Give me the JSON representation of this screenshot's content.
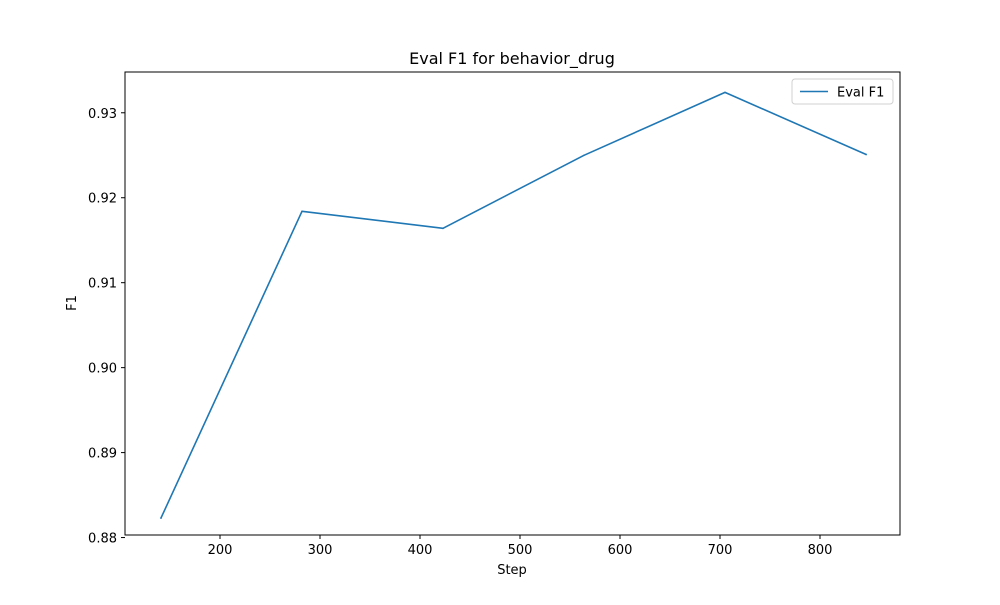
{
  "chart_data": {
    "type": "line",
    "title": "Eval F1 for behavior_drug",
    "xlabel": "Step",
    "ylabel": "F1",
    "xlim": [
      105,
      880
    ],
    "ylim": [
      0.8803,
      0.9348
    ],
    "x_ticks": [
      200,
      300,
      400,
      500,
      600,
      700,
      800
    ],
    "y_ticks": [
      0.88,
      0.89,
      0.9,
      0.91,
      0.92,
      0.93
    ],
    "x_tick_labels": [
      "200",
      "300",
      "400",
      "500",
      "600",
      "700",
      "800"
    ],
    "y_tick_labels": [
      "0.88",
      "0.89",
      "0.90",
      "0.91",
      "0.92",
      "0.93"
    ],
    "grid": false,
    "legend_position": "top-right",
    "series": [
      {
        "name": "Eval F1",
        "color": "#1f77b4",
        "x": [
          141,
          282,
          423,
          564,
          705,
          846
        ],
        "y": [
          0.8823,
          0.9184,
          0.9164,
          0.925,
          0.9324,
          0.9251
        ]
      }
    ]
  }
}
